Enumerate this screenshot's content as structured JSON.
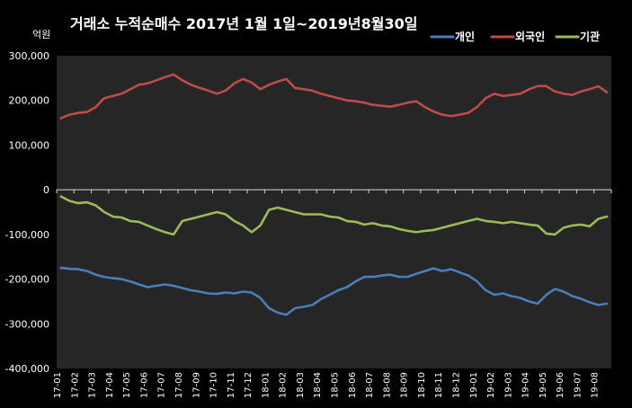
{
  "chart_data": {
    "type": "line",
    "title": "거래소  누적순매수 2017년 1월 1일~2019년8월30일",
    "unit_label": "억원",
    "ylim": [
      -400000,
      300000
    ],
    "yticks": [
      "300,000",
      "200,000",
      "100,000",
      "0",
      "-100,000",
      "-200,000",
      "-300,000",
      "-400,000"
    ],
    "ytick_values": [
      300000,
      200000,
      100000,
      0,
      -100000,
      -200000,
      -300000,
      -400000
    ],
    "categories": [
      "17-01",
      "17-02",
      "17-03",
      "17-04",
      "17-05",
      "17-06",
      "17-07",
      "17-08",
      "17-09",
      "17-10",
      "17-11",
      "17-12",
      "18-01",
      "18-02",
      "18-03",
      "18-04",
      "18-05",
      "18-06",
      "18-07",
      "18-08",
      "18-09",
      "18-10",
      "18-11",
      "18-12",
      "19-01",
      "19-02",
      "19-03",
      "19-04",
      "19-05",
      "19-06",
      "19-07",
      "19-08"
    ],
    "x": [
      "17-01",
      "17-01",
      "17-02",
      "17-02",
      "17-03",
      "17-03",
      "17-04",
      "17-04",
      "17-05",
      "17-05",
      "17-06",
      "17-06",
      "17-07",
      "17-07",
      "17-08",
      "17-08",
      "17-09",
      "17-09",
      "17-10",
      "17-10",
      "17-11",
      "17-11",
      "17-12",
      "17-12",
      "18-01",
      "18-01",
      "18-02",
      "18-02",
      "18-03",
      "18-03",
      "18-04",
      "18-04",
      "18-05",
      "18-05",
      "18-06",
      "18-06",
      "18-07",
      "18-07",
      "18-08",
      "18-08",
      "18-09",
      "18-09",
      "18-10",
      "18-10",
      "18-11",
      "18-11",
      "18-12",
      "18-12",
      "19-01",
      "19-01",
      "19-02",
      "19-02",
      "19-03",
      "19-03",
      "19-04",
      "19-04",
      "19-05",
      "19-05",
      "19-06",
      "19-06",
      "19-07",
      "19-07",
      "19-08",
      "19-08"
    ],
    "grid": false,
    "legend_position": "top-right",
    "series": [
      {
        "name": "개인",
        "color": "#4a7ebb",
        "values": [
          -175000,
          -177000,
          -178000,
          -182000,
          -190000,
          -195000,
          -198000,
          -200000,
          -205000,
          -212000,
          -218000,
          -215000,
          -212000,
          -215000,
          -220000,
          -225000,
          -228000,
          -232000,
          -233000,
          -230000,
          -232000,
          -228000,
          -230000,
          -242000,
          -265000,
          -275000,
          -280000,
          -265000,
          -262000,
          -258000,
          -245000,
          -235000,
          -225000,
          -218000,
          -205000,
          -195000,
          -195000,
          -192000,
          -190000,
          -195000,
          -195000,
          -188000,
          -182000,
          -176000,
          -182000,
          -178000,
          -185000,
          -192000,
          -205000,
          -225000,
          -235000,
          -232000,
          -238000,
          -242000,
          -250000,
          -255000,
          -235000,
          -222000,
          -228000,
          -238000,
          -244000,
          -252000,
          -258000,
          -255000
        ]
      },
      {
        "name": "외국인",
        "color": "#be4b48",
        "values": [
          160000,
          168000,
          172000,
          174000,
          185000,
          205000,
          210000,
          215000,
          225000,
          235000,
          238000,
          245000,
          252000,
          258000,
          245000,
          235000,
          228000,
          222000,
          215000,
          222000,
          238000,
          248000,
          240000,
          225000,
          235000,
          242000,
          248000,
          228000,
          225000,
          222000,
          215000,
          210000,
          205000,
          200000,
          198000,
          195000,
          190000,
          188000,
          186000,
          190000,
          195000,
          198000,
          185000,
          175000,
          168000,
          165000,
          168000,
          172000,
          185000,
          205000,
          215000,
          210000,
          212000,
          215000,
          225000,
          232000,
          232000,
          220000,
          215000,
          212000,
          220000,
          225000,
          232000,
          218000
        ]
      },
      {
        "name": "기관",
        "color": "#9bbb59",
        "values": [
          -15000,
          -25000,
          -30000,
          -28000,
          -35000,
          -50000,
          -60000,
          -62000,
          -70000,
          -72000,
          -80000,
          -88000,
          -95000,
          -100000,
          -70000,
          -65000,
          -60000,
          -55000,
          -50000,
          -55000,
          -70000,
          -80000,
          -95000,
          -80000,
          -45000,
          -40000,
          -45000,
          -50000,
          -55000,
          -55000,
          -55000,
          -60000,
          -62000,
          -70000,
          -72000,
          -78000,
          -75000,
          -80000,
          -82000,
          -88000,
          -92000,
          -95000,
          -92000,
          -90000,
          -85000,
          -80000,
          -75000,
          -70000,
          -65000,
          -70000,
          -72000,
          -75000,
          -72000,
          -75000,
          -78000,
          -80000,
          -98000,
          -100000,
          -85000,
          -80000,
          -78000,
          -82000,
          -65000,
          -60000
        ]
      }
    ]
  }
}
